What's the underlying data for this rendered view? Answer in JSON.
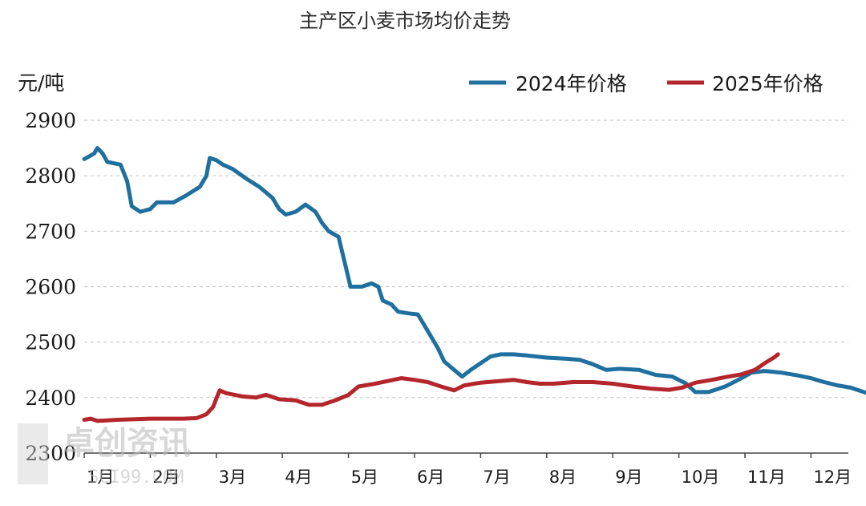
{
  "chart_data": {
    "type": "line",
    "title": "主产区小麦市场均价走势",
    "ylabel": "元/吨",
    "xlabel": "",
    "ylim": [
      2300,
      2900
    ],
    "yticks": [
      "2900",
      "2800",
      "2700",
      "2600",
      "2500",
      "2400",
      "2300"
    ],
    "categories": [
      "1月",
      "2月",
      "3月",
      "4月",
      "5月",
      "6月",
      "7月",
      "8月",
      "9月",
      "10月",
      "11月",
      "12月"
    ],
    "grid": true,
    "legend_position": "top-right",
    "series": [
      {
        "name": "2024年价格",
        "color": "#1f6f9f",
        "points": [
          [
            0.0,
            2830
          ],
          [
            0.15,
            2840
          ],
          [
            0.2,
            2850
          ],
          [
            0.28,
            2840
          ],
          [
            0.35,
            2825
          ],
          [
            0.55,
            2820
          ],
          [
            0.65,
            2790
          ],
          [
            0.72,
            2745
          ],
          [
            0.85,
            2735
          ],
          [
            1.0,
            2740
          ],
          [
            1.1,
            2752
          ],
          [
            1.35,
            2752
          ],
          [
            1.55,
            2765
          ],
          [
            1.75,
            2780
          ],
          [
            1.85,
            2800
          ],
          [
            1.9,
            2832
          ],
          [
            2.0,
            2828
          ],
          [
            2.1,
            2820
          ],
          [
            2.25,
            2812
          ],
          [
            2.45,
            2795
          ],
          [
            2.65,
            2780
          ],
          [
            2.85,
            2760
          ],
          [
            2.95,
            2740
          ],
          [
            3.05,
            2730
          ],
          [
            3.2,
            2735
          ],
          [
            3.35,
            2748
          ],
          [
            3.5,
            2735
          ],
          [
            3.6,
            2715
          ],
          [
            3.7,
            2700
          ],
          [
            3.85,
            2690
          ],
          [
            3.95,
            2640
          ],
          [
            4.03,
            2600
          ],
          [
            4.2,
            2600
          ],
          [
            4.35,
            2606
          ],
          [
            4.45,
            2600
          ],
          [
            4.52,
            2575
          ],
          [
            4.65,
            2568
          ],
          [
            4.75,
            2555
          ],
          [
            4.9,
            2552
          ],
          [
            5.05,
            2550
          ],
          [
            5.2,
            2520
          ],
          [
            5.35,
            2490
          ],
          [
            5.45,
            2465
          ],
          [
            5.6,
            2450
          ],
          [
            5.72,
            2438
          ],
          [
            5.85,
            2450
          ],
          [
            6.0,
            2462
          ],
          [
            6.15,
            2474
          ],
          [
            6.3,
            2478
          ],
          [
            6.5,
            2478
          ],
          [
            6.7,
            2476
          ],
          [
            7.0,
            2472
          ],
          [
            7.3,
            2470
          ],
          [
            7.5,
            2468
          ],
          [
            7.7,
            2460
          ],
          [
            7.9,
            2450
          ],
          [
            8.1,
            2452
          ],
          [
            8.4,
            2450
          ],
          [
            8.65,
            2441
          ],
          [
            8.9,
            2438
          ],
          [
            9.1,
            2426
          ],
          [
            9.25,
            2410
          ],
          [
            9.45,
            2410
          ],
          [
            9.7,
            2420
          ],
          [
            9.9,
            2432
          ],
          [
            10.1,
            2445
          ],
          [
            10.3,
            2448
          ],
          [
            10.55,
            2445
          ],
          [
            10.8,
            2440
          ],
          [
            11.0,
            2435
          ],
          [
            11.2,
            2428
          ],
          [
            11.4,
            2422
          ],
          [
            11.6,
            2418
          ],
          [
            11.8,
            2410
          ],
          [
            12.0,
            2403
          ],
          [
            12.2,
            2400
          ],
          [
            12.45,
            2385
          ],
          [
            12.6,
            2375
          ],
          [
            12.75,
            2357
          ],
          [
            12.85,
            2355
          ]
        ]
      },
      {
        "name": "2025年价格",
        "color": "#b3262c",
        "points": [
          [
            0.0,
            2360
          ],
          [
            0.1,
            2362
          ],
          [
            0.2,
            2358
          ],
          [
            0.5,
            2360
          ],
          [
            1.0,
            2362
          ],
          [
            1.5,
            2362
          ],
          [
            1.7,
            2363
          ],
          [
            1.85,
            2370
          ],
          [
            1.95,
            2383
          ],
          [
            2.05,
            2413
          ],
          [
            2.15,
            2408
          ],
          [
            2.4,
            2402
          ],
          [
            2.6,
            2400
          ],
          [
            2.75,
            2405
          ],
          [
            2.95,
            2397
          ],
          [
            3.2,
            2395
          ],
          [
            3.4,
            2387
          ],
          [
            3.6,
            2387
          ],
          [
            3.8,
            2395
          ],
          [
            4.0,
            2405
          ],
          [
            4.15,
            2420
          ],
          [
            4.4,
            2425
          ],
          [
            4.6,
            2430
          ],
          [
            4.8,
            2435
          ],
          [
            5.0,
            2432
          ],
          [
            5.2,
            2428
          ],
          [
            5.4,
            2420
          ],
          [
            5.6,
            2413
          ],
          [
            5.75,
            2422
          ],
          [
            6.0,
            2427
          ],
          [
            6.3,
            2430
          ],
          [
            6.5,
            2432
          ],
          [
            6.7,
            2428
          ],
          [
            6.9,
            2425
          ],
          [
            7.1,
            2425
          ],
          [
            7.4,
            2428
          ],
          [
            7.7,
            2428
          ],
          [
            8.0,
            2425
          ],
          [
            8.3,
            2420
          ],
          [
            8.6,
            2416
          ],
          [
            8.85,
            2414
          ],
          [
            9.05,
            2418
          ],
          [
            9.25,
            2427
          ],
          [
            9.5,
            2432
          ],
          [
            9.75,
            2438
          ],
          [
            9.95,
            2442
          ],
          [
            10.15,
            2450
          ],
          [
            10.3,
            2462
          ],
          [
            10.45,
            2473
          ],
          [
            10.5,
            2478
          ]
        ]
      }
    ],
    "annotations": [
      "卓创资讯",
      "SCI99.COM"
    ]
  }
}
